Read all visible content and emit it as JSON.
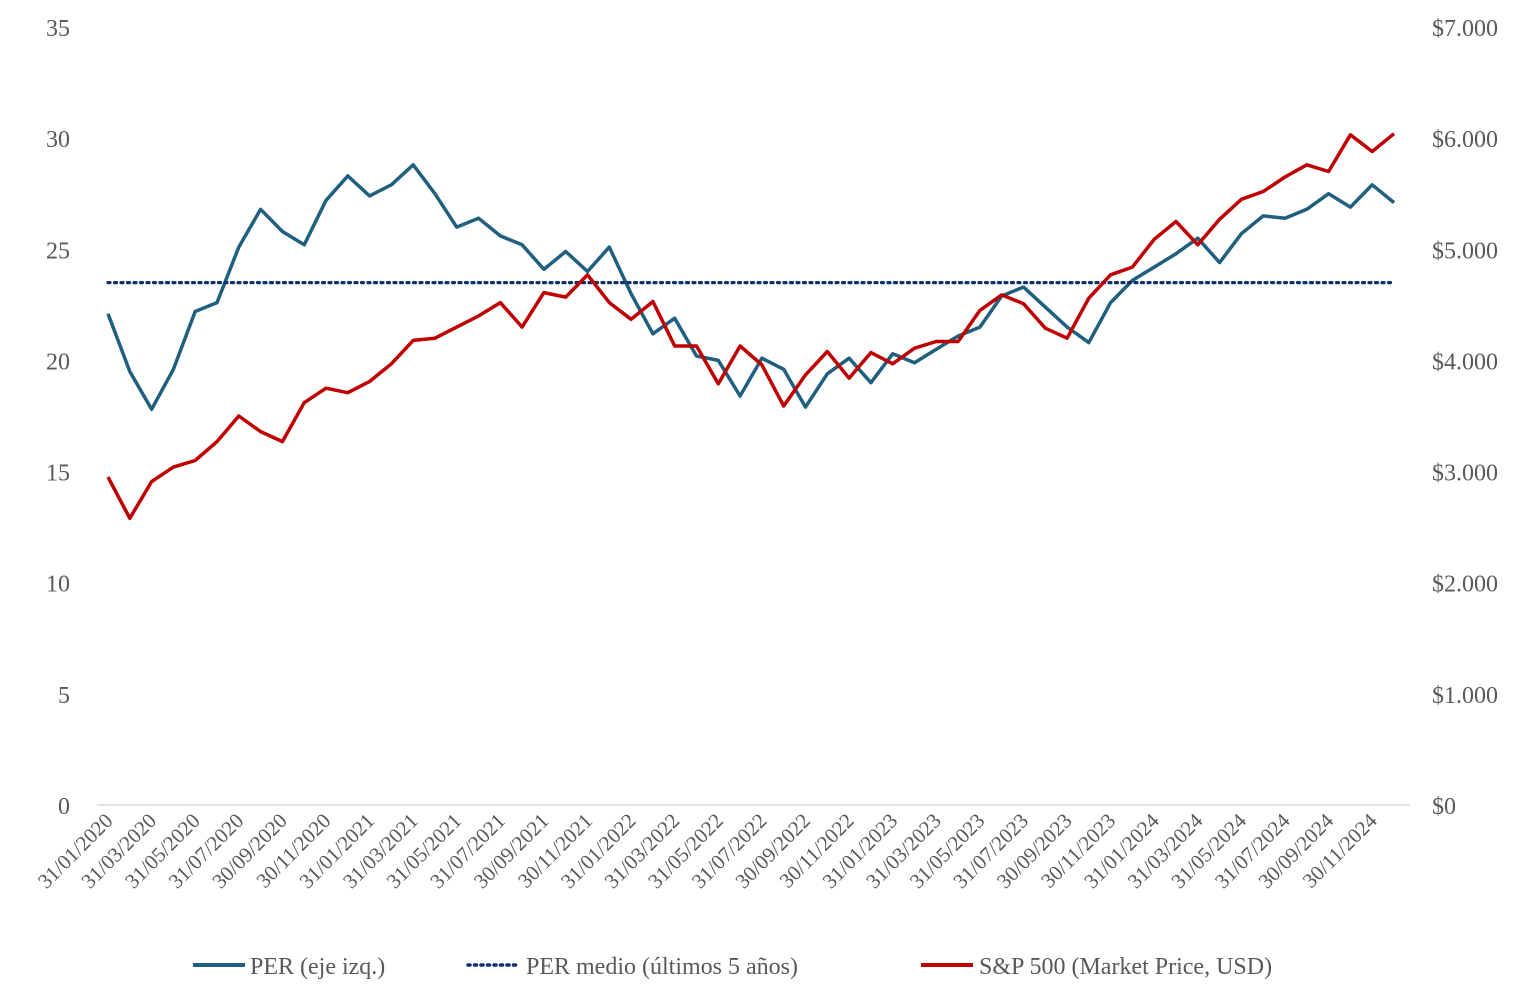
{
  "chart_data": {
    "type": "line",
    "title": "",
    "x_ticks": [
      "31/01/2020",
      "31/03/2020",
      "31/05/2020",
      "31/07/2020",
      "30/09/2020",
      "30/11/2020",
      "31/01/2021",
      "31/03/2021",
      "31/05/2021",
      "31/07/2021",
      "30/09/2021",
      "30/11/2021",
      "31/01/2022",
      "31/03/2022",
      "31/05/2022",
      "31/07/2022",
      "30/09/2022",
      "30/11/2022",
      "31/01/2023",
      "31/03/2023",
      "31/05/2023",
      "31/07/2023",
      "30/09/2023",
      "30/11/2023",
      "31/01/2024",
      "31/03/2024",
      "31/05/2024",
      "31/07/2024",
      "30/09/2024",
      "30/11/2024"
    ],
    "y_left": {
      "ylim": [
        0,
        35
      ],
      "ticks": [
        "0",
        "5",
        "10",
        "15",
        "20",
        "25",
        "30",
        "35"
      ]
    },
    "y_right": {
      "ylim": [
        0,
        7000
      ],
      "ticks": [
        "$0",
        "$1.000",
        "$2.000",
        "$3.000",
        "$4.000",
        "$5.000",
        "$6.000",
        "$7.000"
      ]
    },
    "series": [
      {
        "name": "PER (eje izq.)",
        "axis": "left",
        "color": "#1f5f7f",
        "style": "solid",
        "values": [
          22.1,
          19.5,
          17.8,
          19.6,
          22.2,
          22.6,
          25.1,
          26.8,
          25.8,
          25.2,
          27.2,
          28.3,
          27.4,
          27.9,
          28.8,
          27.5,
          26.0,
          26.4,
          25.6,
          25.2,
          24.1,
          24.9,
          24.0,
          25.1,
          23.0,
          21.2,
          21.9,
          20.2,
          20.0,
          18.4,
          20.1,
          19.6,
          17.9,
          19.4,
          20.1,
          19.0,
          20.3,
          19.9,
          20.5,
          21.1,
          21.5,
          22.9,
          23.3,
          22.4,
          21.5,
          20.8,
          22.6,
          23.6,
          24.2,
          24.8,
          25.5,
          24.4,
          25.7,
          26.5,
          26.4,
          26.8,
          27.5,
          26.9,
          27.9,
          27.1
        ]
      },
      {
        "name": "PER medio (últimos 5 años)",
        "axis": "left",
        "color": "#0f2f6a",
        "style": "dotted",
        "values": [
          23.5,
          23.5,
          23.5,
          23.5,
          23.5,
          23.5,
          23.5,
          23.5,
          23.5,
          23.5,
          23.5,
          23.5,
          23.5,
          23.5,
          23.5,
          23.5,
          23.5,
          23.5,
          23.5,
          23.5,
          23.5,
          23.5,
          23.5,
          23.5,
          23.5,
          23.5,
          23.5,
          23.5,
          23.5,
          23.5,
          23.5,
          23.5,
          23.5,
          23.5,
          23.5,
          23.5,
          23.5,
          23.5,
          23.5,
          23.5,
          23.5,
          23.5,
          23.5,
          23.5,
          23.5,
          23.5,
          23.5,
          23.5,
          23.5,
          23.5,
          23.5,
          23.5,
          23.5,
          23.5,
          23.5,
          23.5,
          23.5,
          23.5,
          23.5,
          23.5
        ]
      },
      {
        "name": "S&P 500 (Market Price, USD)",
        "axis": "right",
        "color": "#c00000",
        "style": "solid",
        "values": [
          2950,
          2580,
          2910,
          3040,
          3100,
          3270,
          3500,
          3360,
          3270,
          3620,
          3750,
          3710,
          3810,
          3970,
          4180,
          4200,
          4300,
          4400,
          4520,
          4300,
          4610,
          4570,
          4770,
          4520,
          4370,
          4530,
          4130,
          4130,
          3790,
          4130,
          3960,
          3590,
          3870,
          4080,
          3840,
          4070,
          3970,
          4110,
          4170,
          4170,
          4450,
          4590,
          4510,
          4290,
          4200,
          4560,
          4770,
          4840,
          5090,
          5250,
          5040,
          5270,
          5450,
          5520,
          5650,
          5760,
          5700,
          6030,
          5880,
          6040
        ]
      }
    ]
  }
}
